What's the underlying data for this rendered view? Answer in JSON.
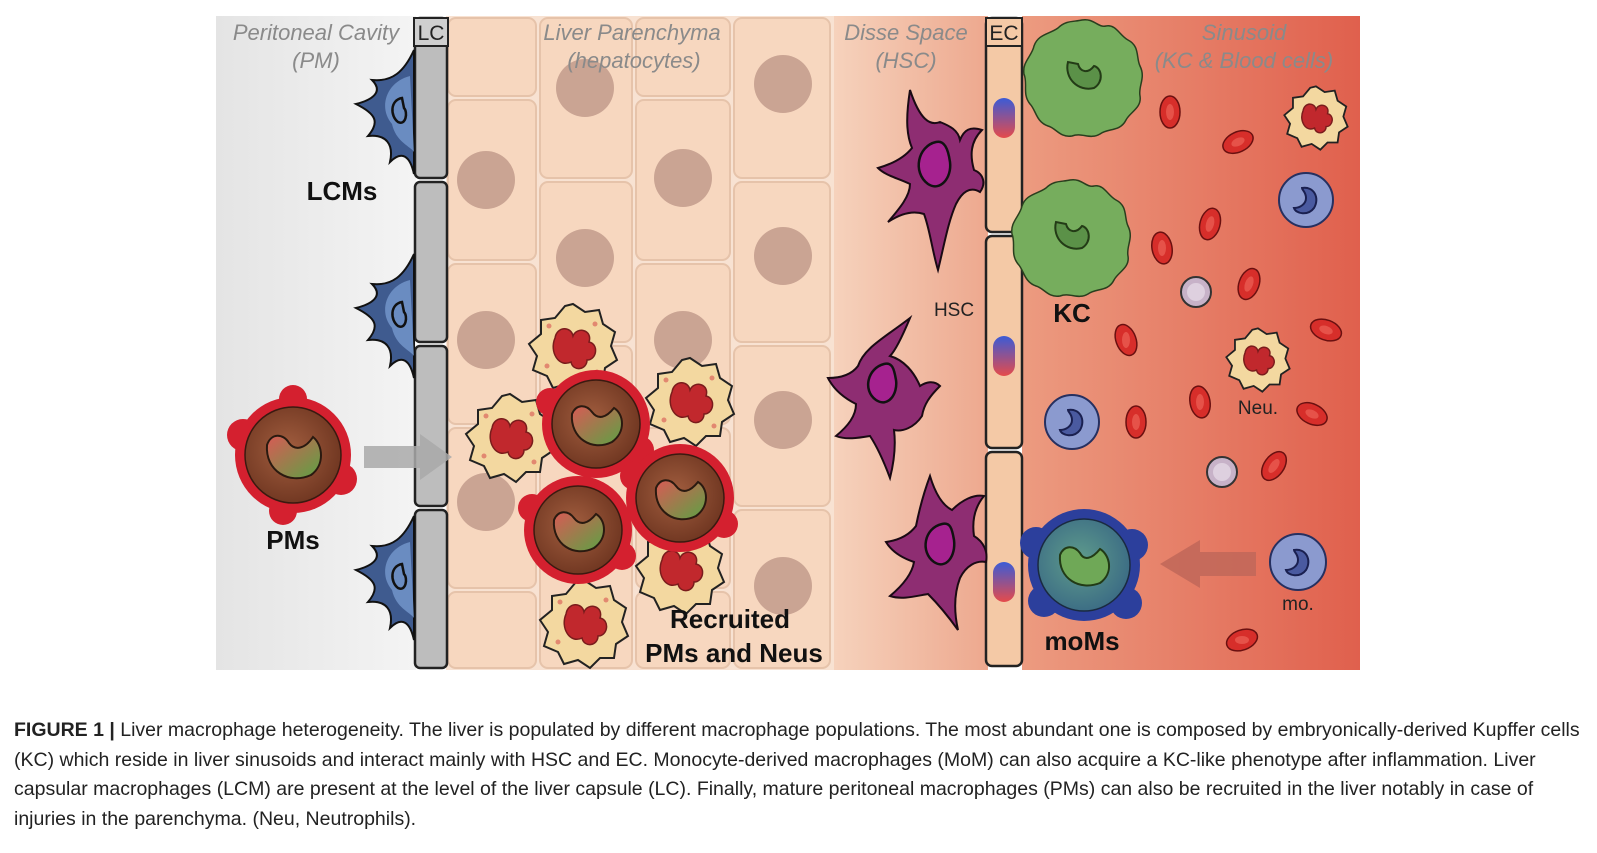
{
  "figure": {
    "zones": {
      "peritoneal_title": "Peritoneal Cavity",
      "peritoneal_sub": "(PM)",
      "lc_box": "LC",
      "parenchyma_title": "Liver Parenchyma",
      "parenchyma_sub": "(hepatocytes)",
      "disse_title": "Disse Space",
      "disse_sub": "(HSC)",
      "ec_box": "EC",
      "sinusoid_title": "Sinusoid",
      "sinusoid_sub": "(KC & Blood cells)"
    },
    "labels": {
      "lcms": "LCMs",
      "pms": "PMs",
      "recruited_line1": "Recruited",
      "recruited_line2": "PMs and Neus",
      "hsc": "HSC",
      "kc": "KC",
      "neu": "Neu.",
      "moms": "moMs",
      "mo": "mo."
    },
    "colors": {
      "peritoneal_bg": "#e2e2e2",
      "hepatocyte": "#f6d5bc",
      "hepatocyte_nucleus": "#c9a391",
      "lcm_blue": "#3e5a8e",
      "hsc_purple": "#8e2d72",
      "kc_green": "#79b05e",
      "pm_red": "#d12030",
      "pm_brown": "#8a4a30",
      "neutrophil": "#f2d79f",
      "rbc": "#d7302b",
      "monocyte": "#8a99cf",
      "sinusoid_bg": "#e16a55",
      "arrow_grey": "#a8a8a8"
    }
  },
  "caption": {
    "figure_label": "FIGURE 1 |",
    "text": "Liver macrophage heterogeneity. The liver is populated by different macrophage populations. The most abundant one is composed by embryonically-derived Kupffer cells (KC) which reside in liver sinusoids and interact mainly with HSC and EC. Monocyte-derived macrophages (MoM) can also acquire a KC-like phenotype after inflammation. Liver capsular macrophages (LCM) are present at the level of the liver capsule (LC). Finally, mature peritoneal macrophages (PMs) can also be recruited in the liver notably in case of injuries in the parenchyma. (Neu, Neutrophils)."
  }
}
